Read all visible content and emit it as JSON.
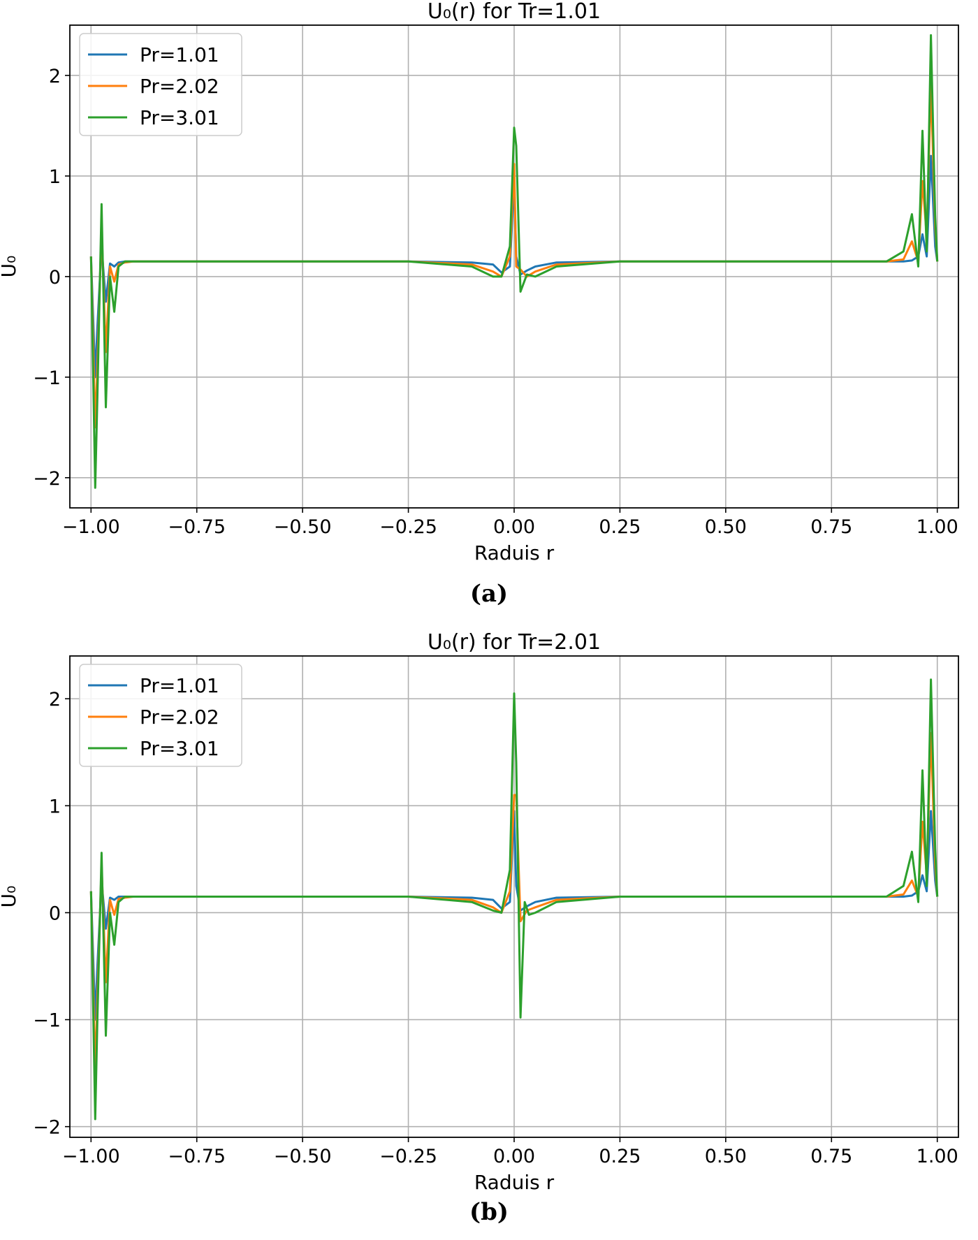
{
  "chart_data": [
    {
      "type": "line",
      "title": "U₀(r) for Tr=1.01",
      "xlabel": "Raduis r",
      "ylabel": "U₀",
      "xlim": [
        -1.05,
        1.05
      ],
      "ylim": [
        -2.3,
        2.5
      ],
      "xticks": [
        "−1.00",
        "−0.75",
        "−0.50",
        "−0.25",
        "0.00",
        "0.25",
        "0.50",
        "0.75",
        "1.00"
      ],
      "yticks": [
        "−2",
        "−1",
        "0",
        "1",
        "2"
      ],
      "grid": true,
      "legend_position": "top-left",
      "caption": "(a)",
      "series": [
        {
          "name": "Pr=1.01",
          "color": "#1f77b4",
          "x": [
            -1.0,
            -0.99,
            -0.985,
            -0.975,
            -0.965,
            -0.955,
            -0.945,
            -0.935,
            -0.92,
            -0.9,
            -0.5,
            -0.25,
            -0.1,
            -0.05,
            -0.03,
            -0.01,
            0.0,
            0.005,
            0.015,
            0.03,
            0.05,
            0.1,
            0.25,
            0.5,
            0.75,
            0.88,
            0.92,
            0.94,
            0.955,
            0.965,
            0.975,
            0.985,
            0.995,
            1.0
          ],
          "y": [
            0.2,
            -1.0,
            -0.5,
            0.3,
            -0.25,
            0.13,
            0.1,
            0.14,
            0.15,
            0.15,
            0.15,
            0.15,
            0.14,
            0.12,
            0.04,
            0.1,
            0.95,
            0.2,
            0.02,
            0.06,
            0.1,
            0.14,
            0.15,
            0.15,
            0.15,
            0.15,
            0.15,
            0.16,
            0.2,
            0.42,
            0.2,
            1.2,
            0.3,
            0.15
          ]
        },
        {
          "name": "Pr=2.02",
          "color": "#ff7f0e",
          "x": [
            -1.0,
            -0.99,
            -0.985,
            -0.975,
            -0.965,
            -0.955,
            -0.945,
            -0.935,
            -0.92,
            -0.9,
            -0.5,
            -0.25,
            -0.1,
            -0.05,
            -0.03,
            -0.01,
            0.0,
            0.005,
            0.015,
            0.03,
            0.05,
            0.1,
            0.25,
            0.5,
            0.75,
            0.88,
            0.92,
            0.94,
            0.955,
            0.965,
            0.975,
            0.985,
            0.995,
            1.0
          ],
          "y": [
            0.2,
            -1.5,
            -0.9,
            0.5,
            -0.75,
            0.1,
            -0.05,
            0.12,
            0.14,
            0.15,
            0.15,
            0.15,
            0.12,
            0.05,
            0.0,
            0.2,
            1.12,
            0.1,
            0.07,
            0.0,
            0.05,
            0.12,
            0.15,
            0.15,
            0.15,
            0.15,
            0.17,
            0.35,
            0.15,
            0.95,
            0.4,
            1.9,
            0.5,
            0.15
          ]
        },
        {
          "name": "Pr=3.01",
          "color": "#2ca02c",
          "x": [
            -1.0,
            -0.99,
            -0.985,
            -0.975,
            -0.965,
            -0.955,
            -0.945,
            -0.935,
            -0.92,
            -0.9,
            -0.5,
            -0.25,
            -0.1,
            -0.05,
            -0.03,
            -0.01,
            0.0,
            0.005,
            0.015,
            0.03,
            0.05,
            0.1,
            0.25,
            0.5,
            0.75,
            0.88,
            0.92,
            0.94,
            0.955,
            0.965,
            0.975,
            0.985,
            0.995,
            1.0
          ],
          "y": [
            0.2,
            -2.1,
            -1.2,
            0.72,
            -1.3,
            0.0,
            -0.35,
            0.1,
            0.15,
            0.15,
            0.15,
            0.15,
            0.1,
            0.0,
            0.0,
            0.3,
            1.48,
            1.3,
            -0.15,
            0.02,
            0.0,
            0.1,
            0.15,
            0.15,
            0.15,
            0.15,
            0.25,
            0.62,
            0.1,
            1.45,
            0.25,
            2.4,
            0.6,
            0.15
          ]
        }
      ]
    },
    {
      "type": "line",
      "title": "U₀(r) for Tr=2.01",
      "xlabel": "Raduis r",
      "ylabel": "U₀",
      "xlim": [
        -1.05,
        1.05
      ],
      "ylim": [
        -2.1,
        2.4
      ],
      "xticks": [
        "−1.00",
        "−0.75",
        "−0.50",
        "−0.25",
        "0.00",
        "0.25",
        "0.50",
        "0.75",
        "1.00"
      ],
      "yticks": [
        "−2",
        "−1",
        "0",
        "1",
        "2"
      ],
      "grid": true,
      "legend_position": "top-left",
      "caption": "(b)",
      "series": [
        {
          "name": "Pr=1.01",
          "color": "#1f77b4",
          "x": [
            -1.0,
            -0.99,
            -0.985,
            -0.975,
            -0.965,
            -0.955,
            -0.945,
            -0.935,
            -0.92,
            -0.9,
            -0.5,
            -0.25,
            -0.1,
            -0.05,
            -0.03,
            -0.01,
            0.0,
            0.005,
            0.015,
            0.03,
            0.05,
            0.1,
            0.25,
            0.5,
            0.75,
            0.88,
            0.92,
            0.94,
            0.955,
            0.965,
            0.975,
            0.985,
            0.995,
            1.0
          ],
          "y": [
            0.2,
            -1.0,
            -0.5,
            0.3,
            -0.15,
            0.14,
            0.12,
            0.15,
            0.15,
            0.15,
            0.15,
            0.15,
            0.14,
            0.12,
            0.04,
            0.1,
            0.95,
            0.25,
            0.02,
            0.06,
            0.1,
            0.14,
            0.15,
            0.15,
            0.15,
            0.15,
            0.15,
            0.16,
            0.2,
            0.35,
            0.2,
            0.95,
            0.3,
            0.15
          ]
        },
        {
          "name": "Pr=2.02",
          "color": "#ff7f0e",
          "x": [
            -1.0,
            -0.99,
            -0.985,
            -0.975,
            -0.965,
            -0.955,
            -0.945,
            -0.935,
            -0.92,
            -0.9,
            -0.5,
            -0.25,
            -0.1,
            -0.05,
            -0.03,
            -0.01,
            0.0,
            0.005,
            0.015,
            0.03,
            0.05,
            0.1,
            0.25,
            0.5,
            0.75,
            0.88,
            0.92,
            0.94,
            0.955,
            0.965,
            0.975,
            0.985,
            0.995,
            1.0
          ],
          "y": [
            0.2,
            -1.5,
            -0.8,
            0.45,
            -0.65,
            0.12,
            -0.02,
            0.13,
            0.14,
            0.15,
            0.15,
            0.15,
            0.12,
            0.05,
            0.0,
            0.2,
            1.1,
            1.1,
            -0.08,
            0.02,
            0.05,
            0.12,
            0.15,
            0.15,
            0.15,
            0.15,
            0.17,
            0.3,
            0.15,
            0.85,
            0.35,
            1.68,
            0.45,
            0.15
          ]
        },
        {
          "name": "Pr=3.01",
          "color": "#2ca02c",
          "x": [
            -1.0,
            -0.99,
            -0.985,
            -0.975,
            -0.965,
            -0.955,
            -0.945,
            -0.935,
            -0.92,
            -0.9,
            -0.5,
            -0.25,
            -0.1,
            -0.05,
            -0.03,
            -0.01,
            0.0,
            0.005,
            0.015,
            0.025,
            0.035,
            0.05,
            0.1,
            0.25,
            0.5,
            0.75,
            0.88,
            0.92,
            0.94,
            0.955,
            0.965,
            0.975,
            0.985,
            0.995,
            1.0
          ],
          "y": [
            0.2,
            -1.93,
            -1.0,
            0.56,
            -1.15,
            0.0,
            -0.3,
            0.1,
            0.15,
            0.15,
            0.15,
            0.15,
            0.1,
            0.02,
            0.0,
            0.4,
            2.05,
            1.4,
            -0.98,
            0.1,
            -0.02,
            0.0,
            0.1,
            0.15,
            0.15,
            0.15,
            0.15,
            0.25,
            0.57,
            0.1,
            1.33,
            0.25,
            2.18,
            0.6,
            0.15
          ]
        }
      ]
    }
  ]
}
